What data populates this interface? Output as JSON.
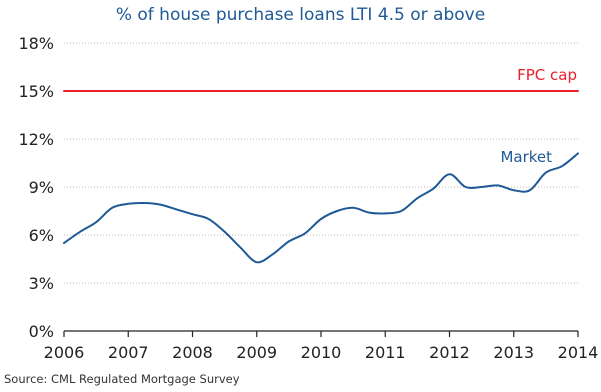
{
  "chart_data": {
    "type": "line",
    "title": "% of house purchase loans LTI 4.5 or above",
    "xlabel": "",
    "ylabel": "",
    "xlim": [
      2006,
      2014
    ],
    "ylim": [
      0,
      18
    ],
    "x_ticks": [
      "2006",
      "2007",
      "2008",
      "2009",
      "2010",
      "2011",
      "2012",
      "2013",
      "2014"
    ],
    "y_ticks": [
      {
        "value": 0,
        "label": "0%"
      },
      {
        "value": 3,
        "label": "3%"
      },
      {
        "value": 6,
        "label": "6%"
      },
      {
        "value": 9,
        "label": "9%"
      },
      {
        "value": 12,
        "label": "12%"
      },
      {
        "value": 15,
        "label": "15%"
      },
      {
        "value": 18,
        "label": "18%"
      }
    ],
    "grid": true,
    "series": [
      {
        "name": "Market",
        "color": "#1f5a96",
        "x": [
          2006.0,
          2006.25,
          2006.5,
          2006.75,
          2007.0,
          2007.25,
          2007.5,
          2007.75,
          2008.0,
          2008.25,
          2008.5,
          2008.75,
          2009.0,
          2009.25,
          2009.5,
          2009.75,
          2010.0,
          2010.25,
          2010.5,
          2010.75,
          2011.0,
          2011.25,
          2011.5,
          2011.75,
          2012.0,
          2012.25,
          2012.5,
          2012.75,
          2013.0,
          2013.25,
          2013.5,
          2013.75,
          2014.0
        ],
        "values": [
          5.5,
          6.2,
          6.8,
          7.7,
          7.95,
          8.0,
          7.9,
          7.6,
          7.3,
          7.0,
          6.2,
          5.2,
          4.3,
          4.8,
          5.6,
          6.1,
          7.0,
          7.5,
          7.7,
          7.4,
          7.35,
          7.5,
          8.3,
          8.9,
          9.8,
          9.0,
          9.0,
          9.1,
          8.8,
          8.8,
          9.9,
          10.3,
          11.1
        ]
      },
      {
        "name": "FPC cap",
        "color": "#e8202a",
        "x": [
          2006,
          2014
        ],
        "values": [
          15,
          15
        ]
      }
    ],
    "source": "Source: CML Regulated Mortgage Survey"
  }
}
